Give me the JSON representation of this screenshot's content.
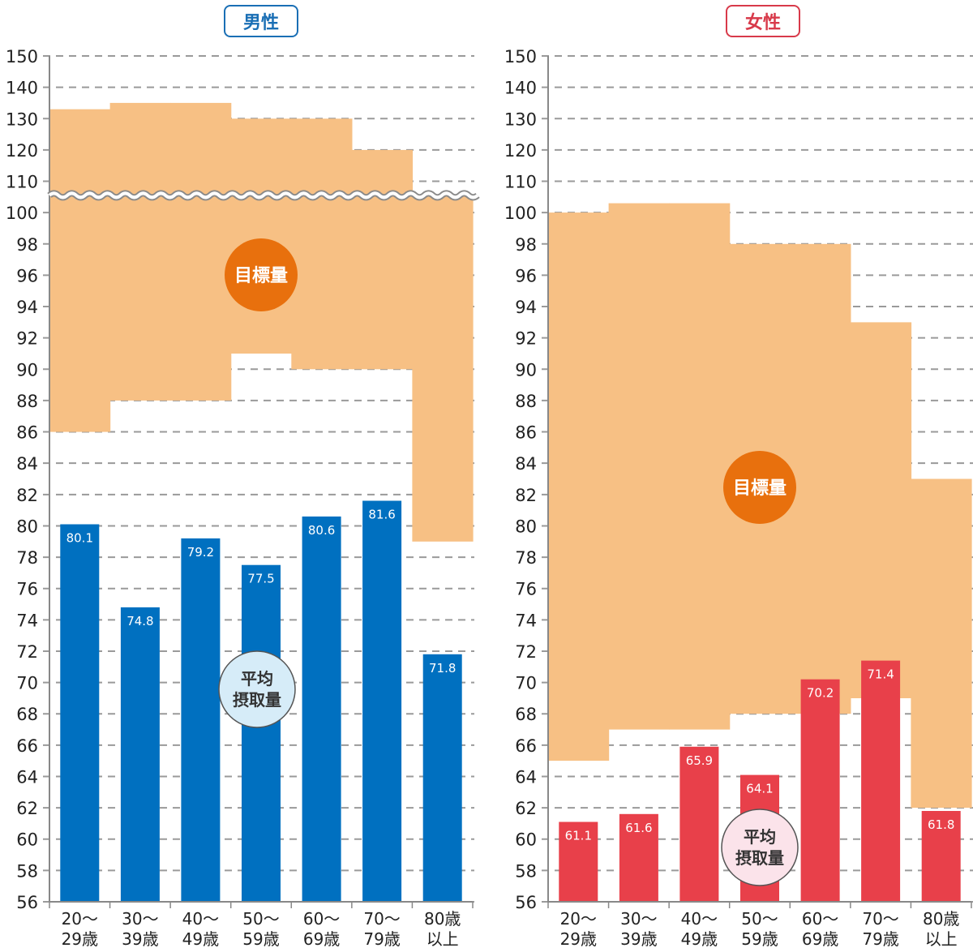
{
  "chart_data": [
    {
      "type": "bar",
      "title": "男性",
      "categories": [
        "20〜29歳",
        "30〜39歳",
        "40〜49歳",
        "50〜59歳",
        "60〜69歳",
        "70〜79歳",
        "80歳以上"
      ],
      "category_lines": [
        [
          "20〜",
          "29歳"
        ],
        [
          "30〜",
          "39歳"
        ],
        [
          "40〜",
          "49歳"
        ],
        [
          "50〜",
          "59歳"
        ],
        [
          "60〜",
          "69歳"
        ],
        [
          "70〜",
          "79歳"
        ],
        [
          "80歳",
          "以上"
        ]
      ],
      "series": [
        {
          "name": "平均摂取量",
          "values": [
            80.1,
            74.8,
            79.2,
            77.5,
            80.6,
            81.6,
            71.8
          ],
          "labels": [
            "80.1",
            "74.8",
            "79.2",
            "77.5",
            "80.6",
            "81.6",
            "71.8"
          ]
        }
      ],
      "target_range": {
        "name": "目標量",
        "lower": [
          86,
          88,
          88,
          91,
          90,
          90,
          79
        ],
        "upper": [
          133,
          135,
          135,
          130,
          130,
          120,
          null
        ]
      },
      "yticks": [
        56,
        58,
        60,
        62,
        64,
        66,
        68,
        70,
        72,
        74,
        76,
        78,
        80,
        82,
        84,
        86,
        88,
        90,
        92,
        94,
        96,
        98,
        100,
        110,
        120,
        130,
        140,
        150
      ],
      "ylim": [
        56,
        150
      ],
      "axis_break": true,
      "grid": true,
      "xlabel": "",
      "ylabel": "",
      "colors": {
        "bar": "#0070c0",
        "target": "#f7c084",
        "target_badge": "#e8700d",
        "intake_badge": "#d6ecf8",
        "title": "#1a6fb5"
      },
      "target_badge_label": "目標量",
      "intake_badge_lines": [
        "平均",
        "摂取量"
      ]
    },
    {
      "type": "bar",
      "title": "女性",
      "categories": [
        "20〜29歳",
        "30〜39歳",
        "40〜49歳",
        "50〜59歳",
        "60〜69歳",
        "70〜79歳",
        "80歳以上"
      ],
      "category_lines": [
        [
          "20〜",
          "29歳"
        ],
        [
          "30〜",
          "39歳"
        ],
        [
          "40〜",
          "49歳"
        ],
        [
          "50〜",
          "59歳"
        ],
        [
          "60〜",
          "69歳"
        ],
        [
          "70〜",
          "79歳"
        ],
        [
          "80歳",
          "以上"
        ]
      ],
      "series": [
        {
          "name": "平均摂取量",
          "values": [
            61.1,
            61.6,
            65.9,
            64.1,
            70.2,
            71.4,
            61.8
          ],
          "labels": [
            "61.1",
            "61.6",
            "65.9",
            "64.1",
            "70.2",
            "71.4",
            "61.8"
          ]
        }
      ],
      "target_range": {
        "name": "目標量",
        "lower": [
          65,
          67,
          67,
          68,
          68,
          69,
          62
        ],
        "upper": [
          100,
          103,
          103,
          98,
          98,
          93,
          83
        ]
      },
      "yticks": [
        56,
        58,
        60,
        62,
        64,
        66,
        68,
        70,
        72,
        74,
        76,
        78,
        80,
        82,
        84,
        86,
        88,
        90,
        92,
        94,
        96,
        98,
        100,
        110,
        120,
        130,
        140,
        150
      ],
      "ylim": [
        56,
        150
      ],
      "axis_break": false,
      "grid": true,
      "xlabel": "",
      "ylabel": "",
      "colors": {
        "bar": "#e8404a",
        "target": "#f7c084",
        "target_badge": "#e8700d",
        "intake_badge": "#fbe3ea",
        "title": "#d83a4a"
      },
      "target_badge_label": "目標量",
      "intake_badge_lines": [
        "平均",
        "摂取量"
      ]
    }
  ]
}
